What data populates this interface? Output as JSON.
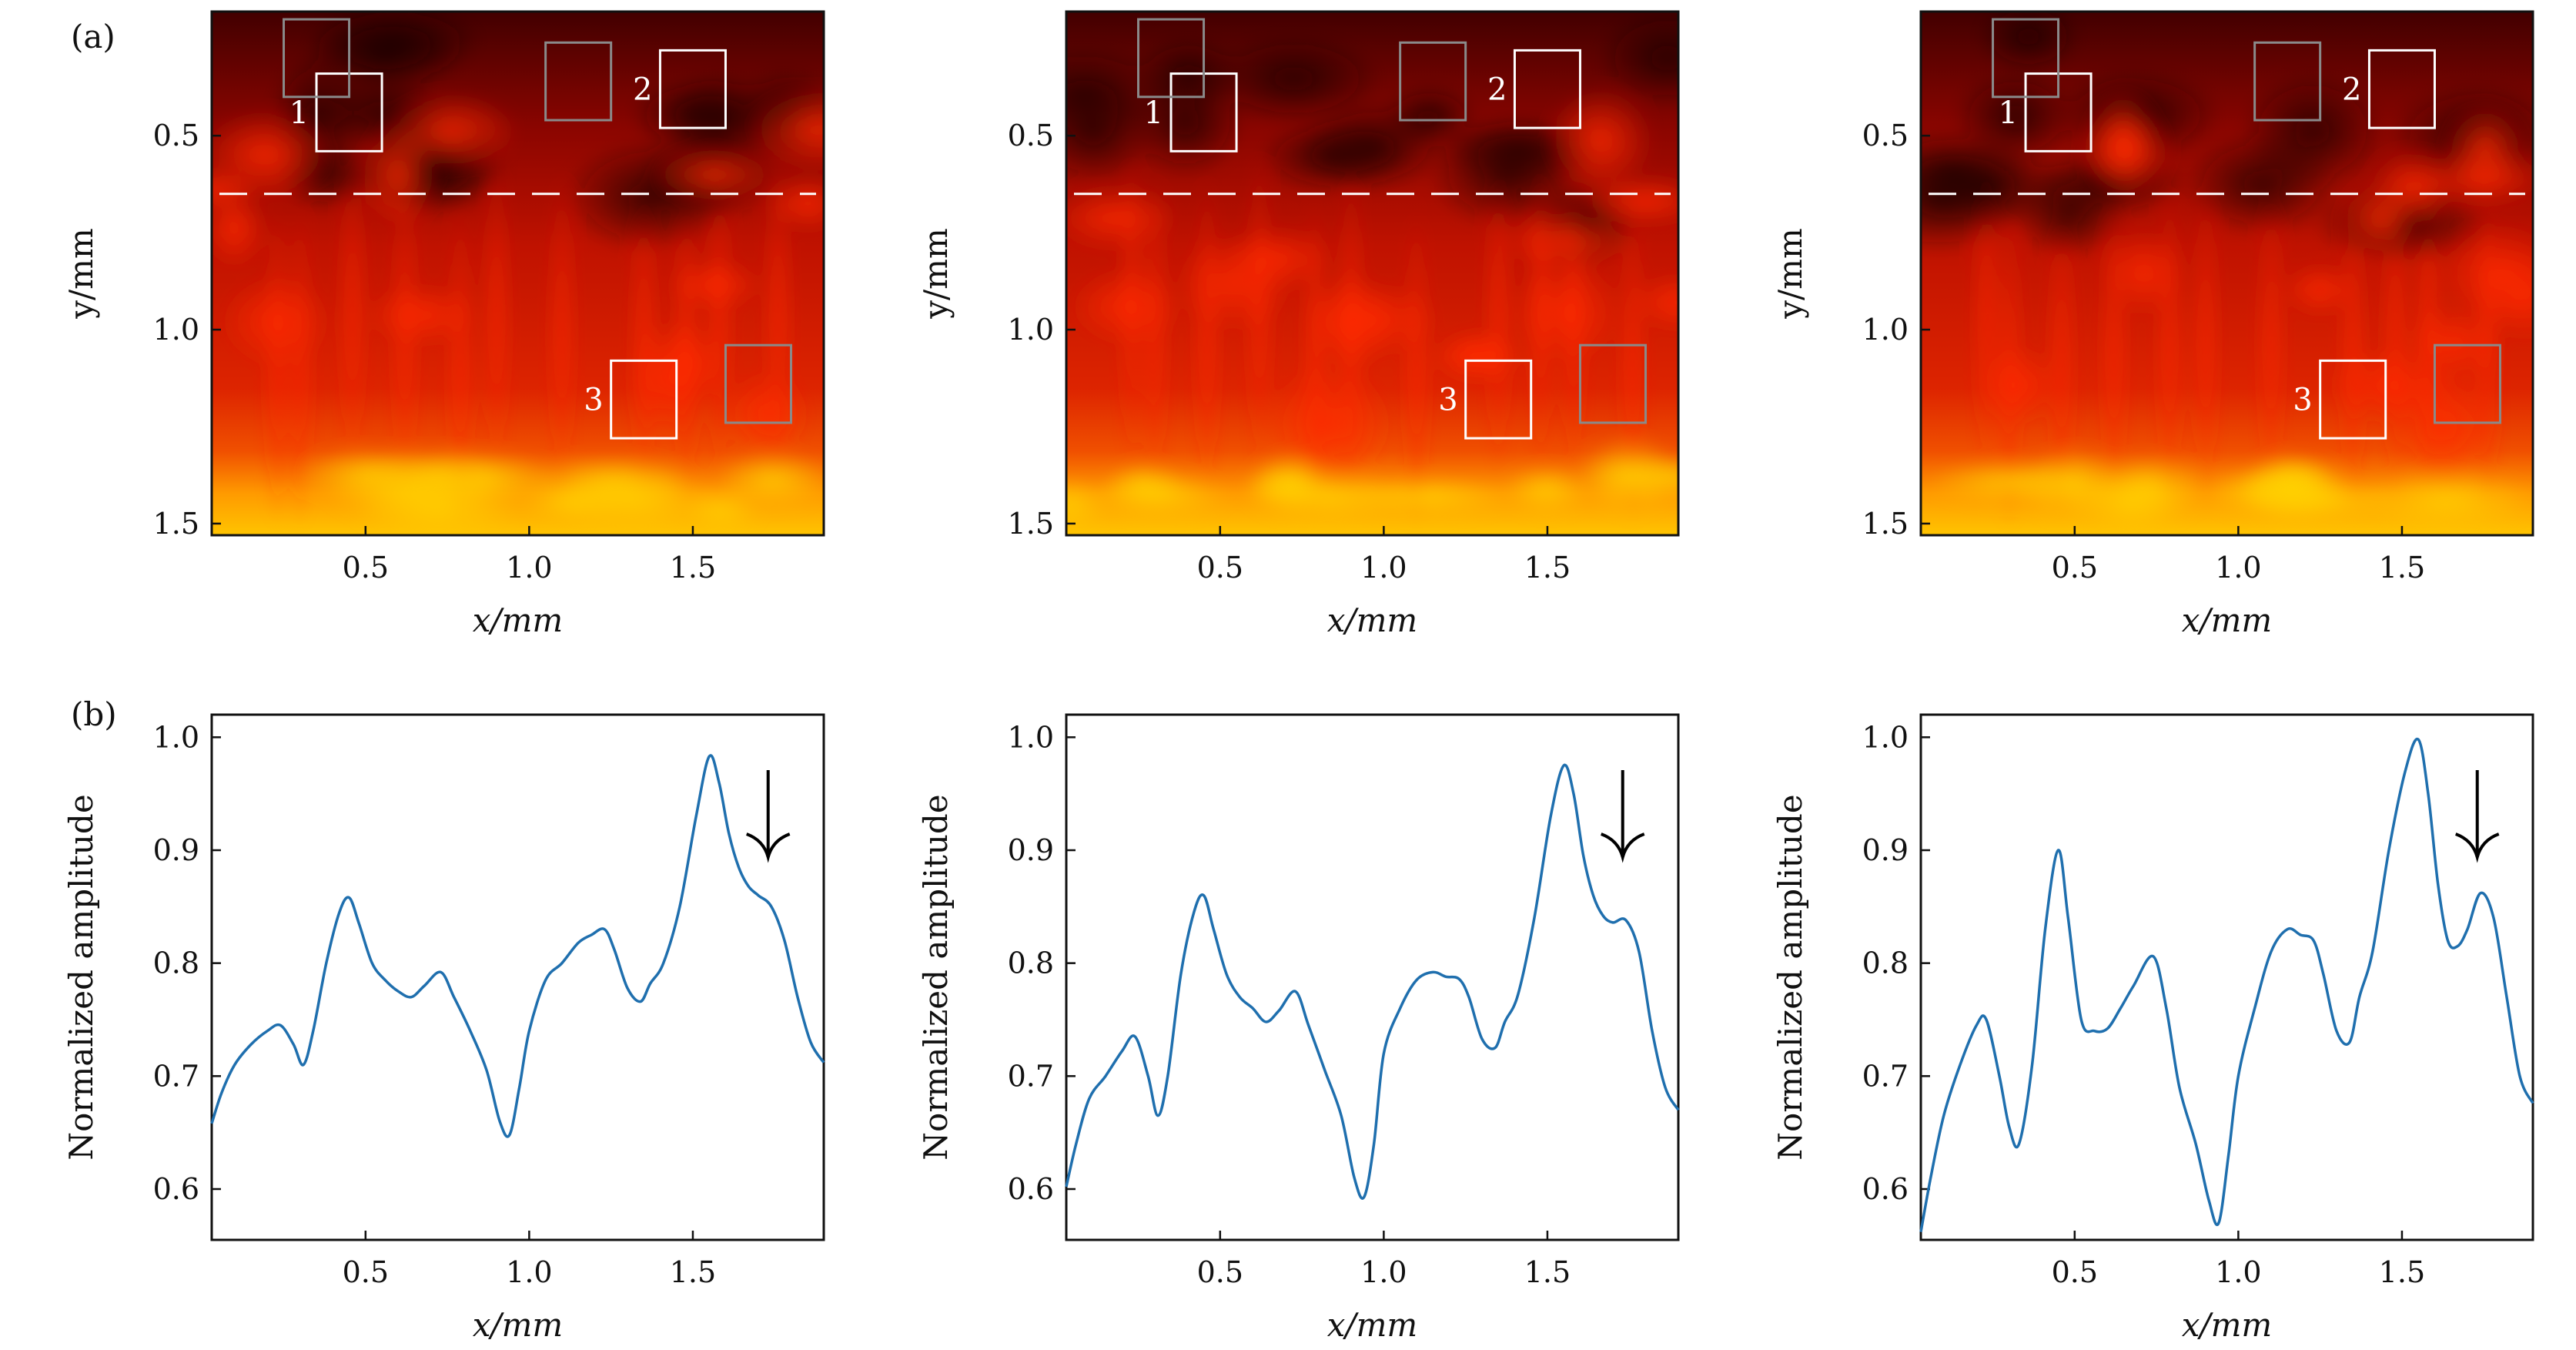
{
  "panel_labels": [
    "(a)",
    "(b)"
  ],
  "colors": {
    "line": "#1f6fae",
    "box_white": "#ffffff",
    "box_gray": "#8a8a8a",
    "dashed": "#ffffff",
    "heat_dark": "#3a0000",
    "heat_red": "#e01a00",
    "heat_orange": "#ff8a00",
    "heat_yellow": "#ffd400"
  },
  "chart_data": [
    {
      "type": "heatmap",
      "panel": "a",
      "xlabel": "x/mm",
      "ylabel": "y/mm",
      "xlim": [
        0.03,
        1.9
      ],
      "ylim": [
        0.18,
        1.53
      ],
      "xticks": [
        "0.5",
        "1.0",
        "1.5"
      ],
      "xtick_values": [
        0.5,
        1.0,
        1.5
      ],
      "yticks": [
        "0.5",
        "1.0",
        "1.5"
      ],
      "ytick_values": [
        0.5,
        1.0,
        1.5
      ],
      "dashed_line_y": 0.65,
      "boxes": [
        {
          "label": "1",
          "x": [
            0.35,
            0.55
          ],
          "y": [
            0.34,
            0.54
          ],
          "color": "white"
        },
        {
          "label": "2",
          "x": [
            1.4,
            1.6
          ],
          "y": [
            0.28,
            0.48
          ],
          "color": "white"
        },
        {
          "label": "3",
          "x": [
            1.25,
            1.45
          ],
          "y": [
            1.08,
            1.28
          ],
          "color": "white"
        },
        {
          "label": "",
          "x": [
            0.25,
            0.45
          ],
          "y": [
            0.2,
            0.4
          ],
          "color": "gray"
        },
        {
          "label": "",
          "x": [
            1.05,
            1.25
          ],
          "y": [
            0.26,
            0.46
          ],
          "color": "gray"
        },
        {
          "label": "",
          "x": [
            1.6,
            1.8
          ],
          "y": [
            1.04,
            1.24
          ],
          "color": "gray"
        }
      ]
    },
    {
      "type": "heatmap",
      "panel": "a",
      "xlabel": "x/mm",
      "ylabel": "y/mm",
      "xlim": [
        0.03,
        1.9
      ],
      "ylim": [
        0.18,
        1.53
      ],
      "xticks": [
        "0.5",
        "1.0",
        "1.5"
      ],
      "xtick_values": [
        0.5,
        1.0,
        1.5
      ],
      "yticks": [
        "0.5",
        "1.0",
        "1.5"
      ],
      "ytick_values": [
        0.5,
        1.0,
        1.5
      ],
      "dashed_line_y": 0.65,
      "boxes": [
        {
          "label": "1",
          "x": [
            0.35,
            0.55
          ],
          "y": [
            0.34,
            0.54
          ],
          "color": "white"
        },
        {
          "label": "2",
          "x": [
            1.4,
            1.6
          ],
          "y": [
            0.28,
            0.48
          ],
          "color": "white"
        },
        {
          "label": "3",
          "x": [
            1.25,
            1.45
          ],
          "y": [
            1.08,
            1.28
          ],
          "color": "white"
        },
        {
          "label": "",
          "x": [
            0.25,
            0.45
          ],
          "y": [
            0.2,
            0.4
          ],
          "color": "gray"
        },
        {
          "label": "",
          "x": [
            1.05,
            1.25
          ],
          "y": [
            0.26,
            0.46
          ],
          "color": "gray"
        },
        {
          "label": "",
          "x": [
            1.6,
            1.8
          ],
          "y": [
            1.04,
            1.24
          ],
          "color": "gray"
        }
      ]
    },
    {
      "type": "heatmap",
      "panel": "a",
      "xlabel": "x/mm",
      "ylabel": "y/mm",
      "xlim": [
        0.03,
        1.9
      ],
      "ylim": [
        0.18,
        1.53
      ],
      "xticks": [
        "0.5",
        "1.0",
        "1.5"
      ],
      "xtick_values": [
        0.5,
        1.0,
        1.5
      ],
      "yticks": [
        "0.5",
        "1.0",
        "1.5"
      ],
      "ytick_values": [
        0.5,
        1.0,
        1.5
      ],
      "dashed_line_y": 0.65,
      "boxes": [
        {
          "label": "1",
          "x": [
            0.35,
            0.55
          ],
          "y": [
            0.34,
            0.54
          ],
          "color": "white"
        },
        {
          "label": "2",
          "x": [
            1.4,
            1.6
          ],
          "y": [
            0.28,
            0.48
          ],
          "color": "white"
        },
        {
          "label": "3",
          "x": [
            1.25,
            1.45
          ],
          "y": [
            1.08,
            1.28
          ],
          "color": "white"
        },
        {
          "label": "",
          "x": [
            0.25,
            0.45
          ],
          "y": [
            0.2,
            0.4
          ],
          "color": "gray"
        },
        {
          "label": "",
          "x": [
            1.05,
            1.25
          ],
          "y": [
            0.26,
            0.46
          ],
          "color": "gray"
        },
        {
          "label": "",
          "x": [
            1.6,
            1.8
          ],
          "y": [
            1.04,
            1.24
          ],
          "color": "gray"
        }
      ]
    },
    {
      "type": "line",
      "panel": "b",
      "xlabel": "x/mm",
      "ylabel": "Normalized amplitude",
      "xlim": [
        0.03,
        1.9
      ],
      "ylim": [
        0.555,
        1.02
      ],
      "xticks": [
        "0.5",
        "1.0",
        "1.5"
      ],
      "xtick_values": [
        0.5,
        1.0,
        1.5
      ],
      "yticks": [
        "0.6",
        "0.7",
        "0.8",
        "0.9",
        "1.0"
      ],
      "ytick_values": [
        0.6,
        0.7,
        0.8,
        0.9,
        1.0
      ],
      "arrow_x": 1.73,
      "series": [
        {
          "name": "amplitude",
          "x": [
            0.03,
            0.06,
            0.1,
            0.15,
            0.2,
            0.24,
            0.28,
            0.31,
            0.34,
            0.38,
            0.42,
            0.45,
            0.48,
            0.52,
            0.56,
            0.6,
            0.64,
            0.68,
            0.73,
            0.77,
            0.82,
            0.87,
            0.91,
            0.94,
            0.97,
            1.0,
            1.05,
            1.1,
            1.15,
            1.19,
            1.23,
            1.26,
            1.3,
            1.34,
            1.37,
            1.41,
            1.46,
            1.51,
            1.55,
            1.58,
            1.61,
            1.64,
            1.67,
            1.7,
            1.74,
            1.78,
            1.82,
            1.86,
            1.9
          ],
          "y": [
            0.658,
            0.685,
            0.71,
            0.728,
            0.74,
            0.745,
            0.728,
            0.71,
            0.74,
            0.8,
            0.845,
            0.858,
            0.835,
            0.8,
            0.785,
            0.775,
            0.77,
            0.78,
            0.792,
            0.77,
            0.74,
            0.705,
            0.66,
            0.648,
            0.69,
            0.74,
            0.785,
            0.8,
            0.818,
            0.825,
            0.83,
            0.812,
            0.778,
            0.766,
            0.782,
            0.8,
            0.85,
            0.93,
            0.983,
            0.96,
            0.915,
            0.885,
            0.868,
            0.86,
            0.85,
            0.82,
            0.77,
            0.73,
            0.712
          ]
        }
      ]
    },
    {
      "type": "line",
      "panel": "b",
      "xlabel": "x/mm",
      "ylabel": "Normalized amplitude",
      "xlim": [
        0.03,
        1.9
      ],
      "ylim": [
        0.555,
        1.02
      ],
      "xticks": [
        "0.5",
        "1.0",
        "1.5"
      ],
      "xtick_values": [
        0.5,
        1.0,
        1.5
      ],
      "yticks": [
        "0.6",
        "0.7",
        "0.8",
        "0.9",
        "1.0"
      ],
      "ytick_values": [
        0.6,
        0.7,
        0.8,
        0.9,
        1.0
      ],
      "arrow_x": 1.73,
      "series": [
        {
          "name": "amplitude",
          "x": [
            0.03,
            0.06,
            0.1,
            0.15,
            0.2,
            0.24,
            0.28,
            0.31,
            0.34,
            0.38,
            0.42,
            0.45,
            0.48,
            0.52,
            0.56,
            0.6,
            0.64,
            0.68,
            0.73,
            0.77,
            0.82,
            0.87,
            0.91,
            0.94,
            0.97,
            1.0,
            1.05,
            1.1,
            1.15,
            1.19,
            1.23,
            1.26,
            1.3,
            1.34,
            1.37,
            1.41,
            1.46,
            1.51,
            1.55,
            1.58,
            1.61,
            1.64,
            1.67,
            1.7,
            1.74,
            1.78,
            1.82,
            1.86,
            1.9
          ],
          "y": [
            0.602,
            0.64,
            0.68,
            0.7,
            0.722,
            0.735,
            0.7,
            0.665,
            0.7,
            0.79,
            0.845,
            0.86,
            0.83,
            0.79,
            0.77,
            0.76,
            0.748,
            0.758,
            0.775,
            0.745,
            0.705,
            0.665,
            0.61,
            0.593,
            0.64,
            0.72,
            0.76,
            0.785,
            0.792,
            0.788,
            0.786,
            0.77,
            0.733,
            0.725,
            0.748,
            0.772,
            0.84,
            0.93,
            0.975,
            0.95,
            0.895,
            0.86,
            0.842,
            0.836,
            0.838,
            0.81,
            0.74,
            0.69,
            0.67
          ]
        }
      ]
    },
    {
      "type": "line",
      "panel": "b",
      "xlabel": "x/mm",
      "ylabel": "Normalized amplitude",
      "xlim": [
        0.03,
        1.9
      ],
      "ylim": [
        0.555,
        1.02
      ],
      "xticks": [
        "0.5",
        "1.0",
        "1.5"
      ],
      "xtick_values": [
        0.5,
        1.0,
        1.5
      ],
      "yticks": [
        "0.6",
        "0.7",
        "0.8",
        "0.9",
        "1.0"
      ],
      "ytick_values": [
        0.6,
        0.7,
        0.8,
        0.9,
        1.0
      ],
      "arrow_x": 1.73,
      "series": [
        {
          "name": "amplitude",
          "x": [
            0.03,
            0.06,
            0.1,
            0.15,
            0.2,
            0.23,
            0.27,
            0.3,
            0.33,
            0.37,
            0.41,
            0.45,
            0.48,
            0.52,
            0.56,
            0.6,
            0.64,
            0.68,
            0.74,
            0.78,
            0.82,
            0.87,
            0.91,
            0.94,
            0.97,
            1.0,
            1.05,
            1.1,
            1.15,
            1.19,
            1.23,
            1.26,
            1.3,
            1.34,
            1.37,
            1.41,
            1.46,
            1.51,
            1.55,
            1.58,
            1.61,
            1.64,
            1.67,
            1.7,
            1.74,
            1.78,
            1.82,
            1.86,
            1.9
          ],
          "y": [
            0.562,
            0.61,
            0.665,
            0.71,
            0.745,
            0.75,
            0.7,
            0.655,
            0.64,
            0.71,
            0.83,
            0.9,
            0.84,
            0.75,
            0.74,
            0.742,
            0.76,
            0.78,
            0.806,
            0.76,
            0.69,
            0.64,
            0.59,
            0.57,
            0.63,
            0.7,
            0.76,
            0.81,
            0.83,
            0.825,
            0.82,
            0.79,
            0.74,
            0.73,
            0.77,
            0.81,
            0.9,
            0.97,
            0.998,
            0.95,
            0.87,
            0.82,
            0.815,
            0.83,
            0.862,
            0.84,
            0.77,
            0.7,
            0.676
          ]
        }
      ]
    }
  ]
}
